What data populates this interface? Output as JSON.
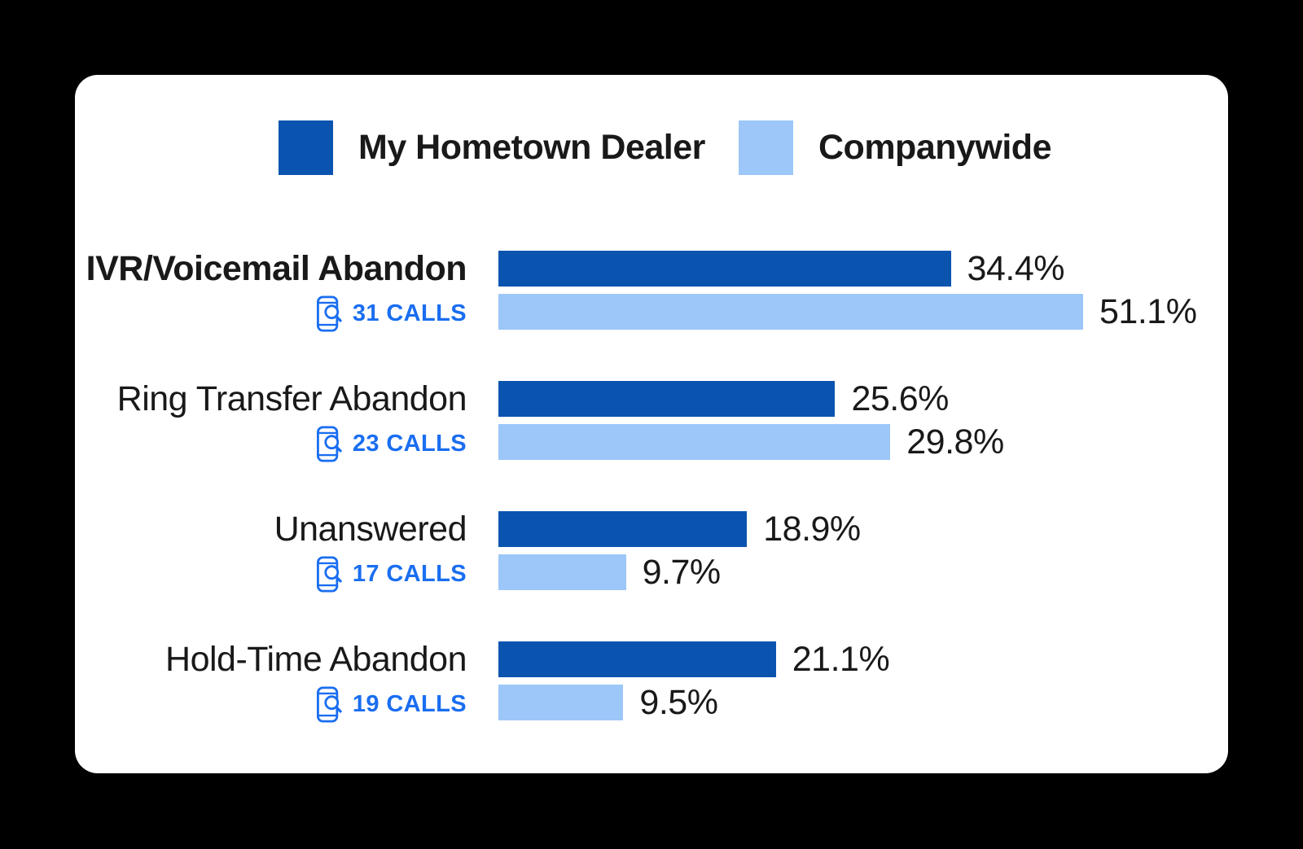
{
  "colors": {
    "background": "#000000",
    "card": "#FFFFFF",
    "text": "#191919",
    "calls_link": "#1A6EF0"
  },
  "chart_data": {
    "type": "bar",
    "orientation": "horizontal",
    "title": "",
    "categories": [
      "IVR/Voicemail Abandon",
      "Ring Transfer Abandon",
      "Unanswered",
      "Hold-Time Abandon"
    ],
    "series": [
      {
        "name": "My Hometown Dealer",
        "color": "#0A54B0",
        "values": [
          34.4,
          25.6,
          18.9,
          21.1
        ],
        "labels": [
          "34.4%",
          "25.6%",
          "18.9%",
          "21.1%"
        ]
      },
      {
        "name": "Companywide",
        "color": "#9CC7F8",
        "values": [
          51.1,
          29.8,
          9.7,
          9.5
        ],
        "labels": [
          "51.1%",
          "29.8%",
          "9.7%",
          "9.5%"
        ]
      }
    ],
    "call_counts": [
      31,
      23,
      17,
      19
    ],
    "call_labels": [
      "31 CALLS",
      "23 CALLS",
      "17 CALLS",
      "19 CALLS"
    ],
    "value_suffix": "%",
    "xlim": [
      0,
      52
    ],
    "grid": false,
    "legend_position": "top",
    "highlighted_category": "IVR/Voicemail Abandon"
  }
}
